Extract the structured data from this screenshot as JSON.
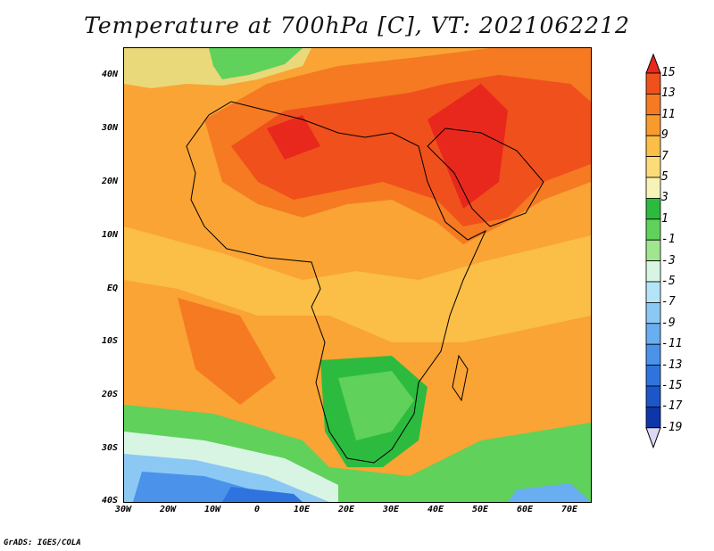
{
  "title": "Temperature at 700hPa [C], VT: 2021062212",
  "footer": "GrADS: IGES/COLA",
  "map": {
    "lat_labels": [
      "40N",
      "30N",
      "20N",
      "10N",
      "EQ",
      "10S",
      "20S",
      "30S",
      "40S"
    ],
    "lon_labels": [
      "30W",
      "20W",
      "10W",
      "0",
      "10E",
      "20E",
      "30E",
      "40E",
      "50E",
      "60E",
      "70E"
    ],
    "lat_range": [
      -40,
      45
    ],
    "lon_range": [
      -30,
      75
    ]
  },
  "colorbar": {
    "labels": [
      "15",
      "13",
      "11",
      "9",
      "7",
      "5",
      "3",
      "1",
      "-1",
      "-3",
      "-5",
      "-7",
      "-9",
      "-11",
      "-13",
      "-15",
      "-17",
      "-19"
    ],
    "colors": [
      "#e8281c",
      "#f0501c",
      "#f57a22",
      "#f99b2c",
      "#fbbe46",
      "#fcdc78",
      "#f7f2b8",
      "#2cbb3e",
      "#60d15a",
      "#9fe68f",
      "#d8f5e3",
      "#b4e4f8",
      "#8cc8f4",
      "#68aef0",
      "#4a92ea",
      "#2f74de",
      "#1c56c8",
      "#0e36a8",
      "#0a1e80"
    ]
  }
}
